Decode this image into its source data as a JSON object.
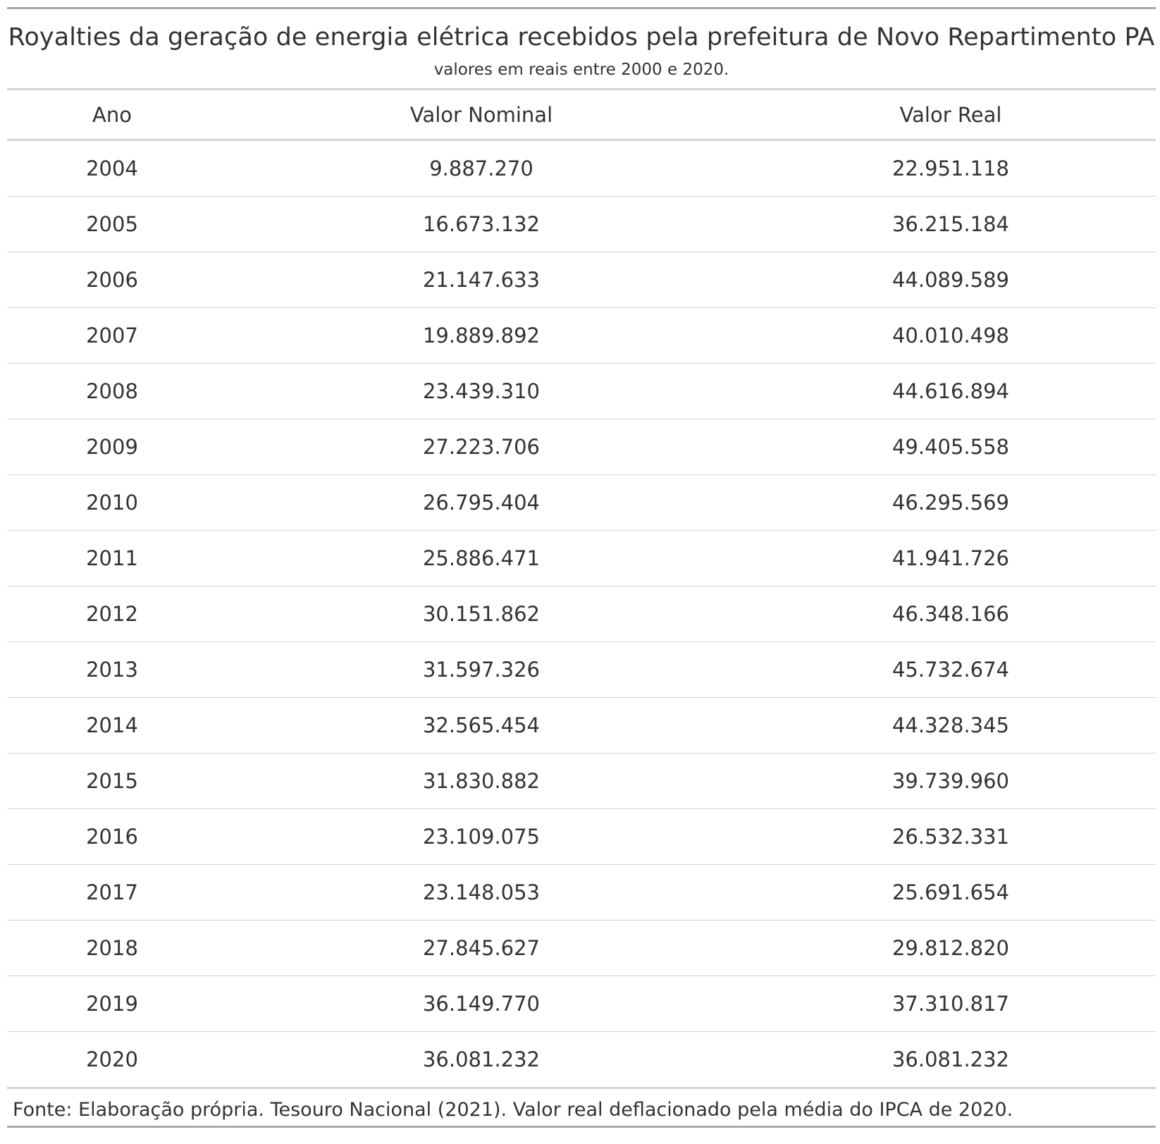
{
  "chart_data": {
    "type": "table",
    "title": "Royalties da geração de energia elétrica recebidos pela prefeitura de Novo Repartimento PA",
    "subtitle": "valores em reais entre 2000 e 2020.",
    "columns": [
      "Ano",
      "Valor Nominal",
      "Valor Real"
    ],
    "rows": [
      [
        "2004",
        "9.887.270",
        "22.951.118"
      ],
      [
        "2005",
        "16.673.132",
        "36.215.184"
      ],
      [
        "2006",
        "21.147.633",
        "44.089.589"
      ],
      [
        "2007",
        "19.889.892",
        "40.010.498"
      ],
      [
        "2008",
        "23.439.310",
        "44.616.894"
      ],
      [
        "2009",
        "27.223.706",
        "49.405.558"
      ],
      [
        "2010",
        "26.795.404",
        "46.295.569"
      ],
      [
        "2011",
        "25.886.471",
        "41.941.726"
      ],
      [
        "2012",
        "30.151.862",
        "46.348.166"
      ],
      [
        "2013",
        "31.597.326",
        "45.732.674"
      ],
      [
        "2014",
        "32.565.454",
        "44.328.345"
      ],
      [
        "2015",
        "31.830.882",
        "39.739.960"
      ],
      [
        "2016",
        "23.109.075",
        "26.532.331"
      ],
      [
        "2017",
        "23.148.053",
        "25.691.654"
      ],
      [
        "2018",
        "27.845.627",
        "29.812.820"
      ],
      [
        "2019",
        "36.149.770",
        "37.310.817"
      ],
      [
        "2020",
        "36.081.232",
        "36.081.232"
      ]
    ],
    "footnote": "Fonte: Elaboração própria. Tesouro Nacional (2021). Valor real deflacionado pela média do IPCA de 2020."
  }
}
